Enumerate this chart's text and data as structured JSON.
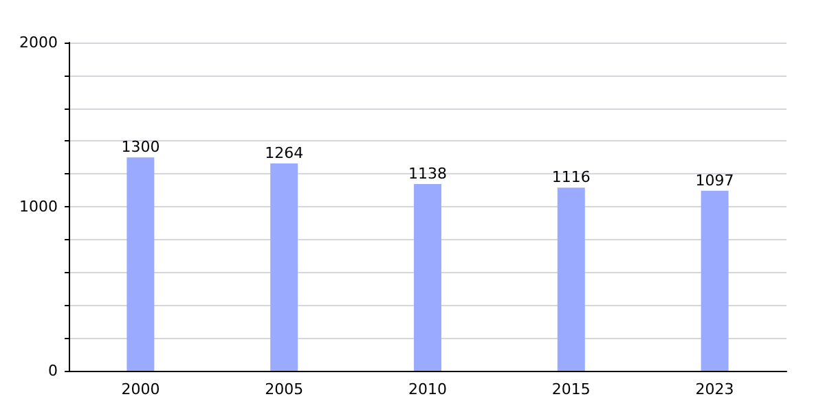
{
  "chart_data": {
    "type": "bar",
    "categories": [
      "2000",
      "2005",
      "2010",
      "2015",
      "2023"
    ],
    "values": [
      1300,
      1264,
      1138,
      1116,
      1097
    ],
    "color": "#99aaff",
    "ylim": [
      0,
      2000
    ],
    "yticks": [
      0,
      {
        "value": 200,
        "label": null
      },
      {
        "value": 400,
        "label": null
      },
      {
        "value": 600,
        "label": null
      },
      {
        "value": 800,
        "label": null
      },
      1000,
      {
        "value": 1200,
        "label": null
      },
      {
        "value": 1400,
        "label": null
      },
      {
        "value": 1600,
        "label": null
      },
      {
        "value": 1800,
        "label": null
      },
      2000
    ],
    "grid": "y",
    "data_labels": true
  }
}
